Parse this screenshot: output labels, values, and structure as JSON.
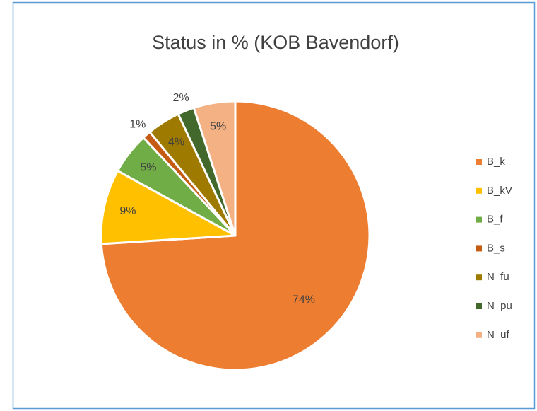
{
  "chart_data": {
    "type": "pie",
    "title": "Status in % (KOB Bavendorf)",
    "categories": [
      "B_k",
      "B_kV",
      "B_f",
      "B_s",
      "N_fu",
      "N_pu",
      "N_uf"
    ],
    "values": [
      74,
      9,
      5,
      1,
      4,
      2,
      5
    ],
    "value_labels": [
      "74%",
      "9%",
      "5%",
      "1%",
      "4%",
      "2%",
      "5%"
    ],
    "colors": [
      "#ED7D31",
      "#FFC000",
      "#70AD47",
      "#C55A11",
      "#9E7A00",
      "#43682B",
      "#F4B183"
    ],
    "legend": "right"
  }
}
